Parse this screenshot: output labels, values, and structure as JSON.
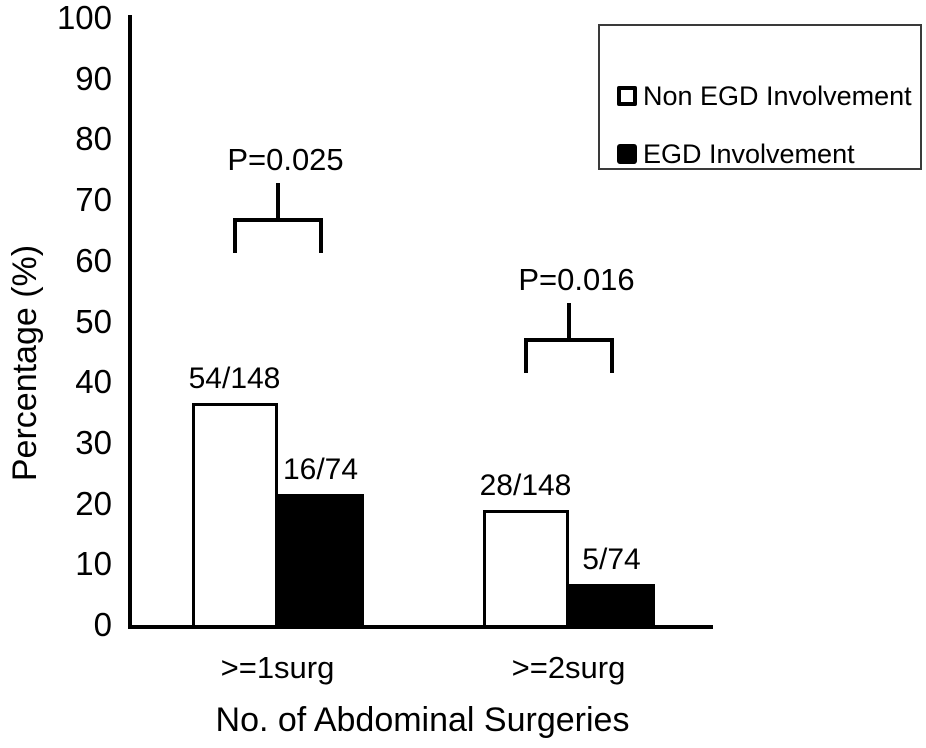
{
  "figure": {
    "background": "#ffffff",
    "ink_color": "#000000"
  },
  "chart_data": {
    "type": "bar",
    "title": "",
    "xlabel": "No. of Abdominal Surgeries",
    "ylabel": "Percentage (%)",
    "ylim": [
      0,
      100
    ],
    "yticks": [
      0,
      10,
      20,
      30,
      40,
      50,
      60,
      70,
      80,
      90,
      100
    ],
    "categories": [
      ">=1surg",
      ">=2surg"
    ],
    "series": [
      {
        "name": "Non EGD Involvement",
        "fill": "#ffffff",
        "values": [
          36.5,
          18.9
        ],
        "labels": [
          "54/148",
          "28/148"
        ]
      },
      {
        "name": "EGD Involvement",
        "fill": "#000000",
        "values": [
          21.6,
          6.8
        ],
        "labels": [
          "16/74",
          "5/74"
        ]
      }
    ],
    "annotations": [
      {
        "text": "P=0.025",
        "category": ">=1surg"
      },
      {
        "text": "P=0.016",
        "category": ">=2surg"
      }
    ],
    "legend_position": "top-right",
    "grid": false
  }
}
